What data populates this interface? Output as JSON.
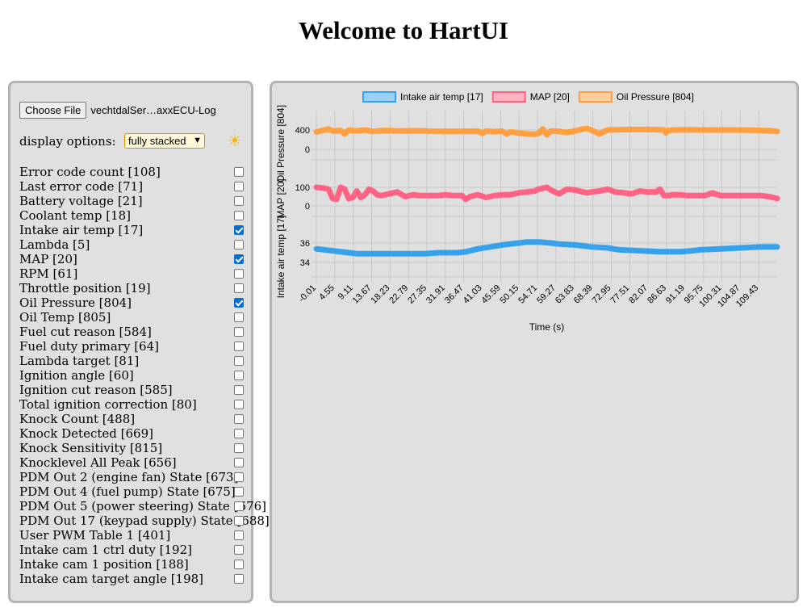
{
  "page": {
    "title": "Welcome to HartUI"
  },
  "controls": {
    "file_button_label": "Choose File",
    "file_name": "vechtdalSer…axxECU-Log",
    "display_label": "display options:",
    "display_value": "fully stacked",
    "theme_icon": "sun-icon"
  },
  "channels": [
    {
      "label": "Error code count [108]",
      "checked": false
    },
    {
      "label": "Last error code [71]",
      "checked": false
    },
    {
      "label": "Battery voltage [21]",
      "checked": false
    },
    {
      "label": "Coolant temp [18]",
      "checked": false
    },
    {
      "label": "Intake air temp [17]",
      "checked": true
    },
    {
      "label": "Lambda [5]",
      "checked": false
    },
    {
      "label": "MAP [20]",
      "checked": true
    },
    {
      "label": "RPM [61]",
      "checked": false
    },
    {
      "label": "Throttle position [19]",
      "checked": false
    },
    {
      "label": "Oil Pressure [804]",
      "checked": true
    },
    {
      "label": "Oil Temp [805]",
      "checked": false
    },
    {
      "label": "Fuel cut reason [584]",
      "checked": false
    },
    {
      "label": "Fuel duty primary [64]",
      "checked": false
    },
    {
      "label": "Lambda target [81]",
      "checked": false
    },
    {
      "label": "Ignition angle [60]",
      "checked": false
    },
    {
      "label": "Ignition cut reason [585]",
      "checked": false
    },
    {
      "label": "Total ignition correction [80]",
      "checked": false
    },
    {
      "label": "Knock Count [488]",
      "checked": false
    },
    {
      "label": "Knock Detected [669]",
      "checked": false
    },
    {
      "label": "Knock Sensitivity [815]",
      "checked": false
    },
    {
      "label": "Knocklevel All Peak [656]",
      "checked": false
    },
    {
      "label": "PDM Out 2 (engine fan) State [673]",
      "checked": false
    },
    {
      "label": "PDM Out 4 (fuel pump) State [675]",
      "checked": false
    },
    {
      "label": "PDM Out 5 (power steering) State [676]",
      "checked": false
    },
    {
      "label": "PDM Out 17 (keypad supply) State [688]",
      "checked": false
    },
    {
      "label": "User PWM Table 1 [401]",
      "checked": false
    },
    {
      "label": "Intake cam 1 ctrl duty [192]",
      "checked": false
    },
    {
      "label": "Intake cam 1 position [188]",
      "checked": false
    },
    {
      "label": "Intake cam target angle [198]",
      "checked": false
    }
  ],
  "chart_data": {
    "type": "line",
    "xlabel": "Time (s)",
    "x_ticks": [
      "-0.01",
      "4.55",
      "9.11",
      "13.67",
      "18.23",
      "22.79",
      "27.35",
      "31.91",
      "36.47",
      "41.03",
      "45.59",
      "50.15",
      "54.71",
      "59.27",
      "63.83",
      "68.39",
      "72.95",
      "77.51",
      "82.07",
      "86.63",
      "91.19",
      "95.75",
      "100.31",
      "104.87",
      "109.43"
    ],
    "x_range": [
      -0.01,
      113.99
    ],
    "grid": true,
    "legend_position": "top-center",
    "series": [
      {
        "name": "Intake air temp [17]",
        "ylabel": "Intake air temp [17]",
        "color": "#36a2eb",
        "fill": "#9ad0f5",
        "y_ticks": [
          "36",
          "34"
        ],
        "y_range": [
          33.8,
          36.9
        ],
        "x": [
          0,
          4,
          8,
          10,
          15,
          20,
          25,
          27,
          30,
          35,
          37,
          40,
          43,
          46,
          50,
          52,
          55,
          58,
          60,
          64,
          68,
          72,
          75,
          80,
          85,
          88,
          90,
          93,
          95,
          100,
          105,
          110,
          114
        ],
        "y": [
          35.4,
          35.2,
          35.0,
          34.9,
          34.9,
          34.9,
          34.9,
          34.9,
          35.0,
          35.0,
          35.1,
          35.4,
          35.6,
          35.8,
          36.0,
          36.1,
          36.1,
          36.0,
          35.9,
          35.8,
          35.6,
          35.5,
          35.3,
          35.2,
          35.1,
          35.1,
          35.1,
          35.2,
          35.3,
          35.4,
          35.5,
          35.6,
          35.6
        ]
      },
      {
        "name": "MAP [20]",
        "ylabel": "MAP [20]",
        "color": "#ff6384",
        "fill": "#ffb1c1",
        "y_ticks": [
          "100",
          "0"
        ],
        "y_range": [
          -5,
          160
        ],
        "x": [
          0,
          2,
          3,
          4,
          5,
          6,
          7,
          8,
          9,
          10,
          11,
          12,
          13,
          14,
          15,
          16,
          18,
          20,
          22,
          24,
          26,
          28,
          30,
          32,
          34,
          36,
          37,
          38,
          40,
          42,
          44,
          46,
          48,
          50,
          52,
          54,
          55,
          56,
          57,
          58,
          60,
          62,
          64,
          66,
          67,
          68,
          70,
          72,
          74,
          76,
          78,
          80,
          82,
          84,
          85,
          86,
          87,
          88,
          90,
          92,
          94,
          96,
          98,
          100,
          102,
          104,
          106,
          108,
          110,
          112,
          114
        ],
        "y": [
          100,
          95,
          90,
          40,
          35,
          100,
          90,
          40,
          45,
          80,
          45,
          60,
          90,
          80,
          60,
          55,
          65,
          75,
          50,
          60,
          55,
          55,
          55,
          60,
          55,
          55,
          35,
          50,
          60,
          45,
          55,
          60,
          60,
          70,
          75,
          80,
          90,
          95,
          100,
          85,
          65,
          90,
          85,
          75,
          70,
          75,
          80,
          90,
          75,
          70,
          65,
          80,
          75,
          75,
          90,
          55,
          55,
          60,
          60,
          55,
          55,
          55,
          70,
          55,
          55,
          55,
          55,
          55,
          55,
          50,
          40
        ]
      },
      {
        "name": "Oil Pressure [804]",
        "ylabel": "Oil Pressure [804]",
        "color": "#ff9f40",
        "fill": "#ffcf9f",
        "y_ticks": [
          "400",
          "0"
        ],
        "y_range": [
          -30,
          520
        ],
        "x": [
          0,
          2,
          3,
          4,
          6,
          7,
          8,
          10,
          12,
          14,
          16,
          18,
          20,
          24,
          30,
          36,
          40,
          41,
          42,
          44,
          46,
          47,
          48,
          50,
          52,
          54,
          55,
          56,
          57,
          58,
          60,
          62,
          64,
          66,
          67,
          68,
          70,
          72,
          74,
          78,
          82,
          86,
          86.5,
          87,
          88,
          92,
          96,
          100,
          104,
          108,
          112,
          114
        ],
        "y": [
          360,
          400,
          420,
          380,
          390,
          320,
          400,
          380,
          400,
          370,
          385,
          390,
          380,
          385,
          370,
          370,
          375,
          330,
          380,
          365,
          375,
          320,
          360,
          340,
          320,
          310,
          330,
          420,
          300,
          380,
          370,
          350,
          380,
          420,
          430,
          400,
          320,
          400,
          405,
          410,
          410,
          400,
          340,
          390,
          400,
          405,
          400,
          400,
          400,
          395,
          385,
          370
        ]
      }
    ]
  }
}
